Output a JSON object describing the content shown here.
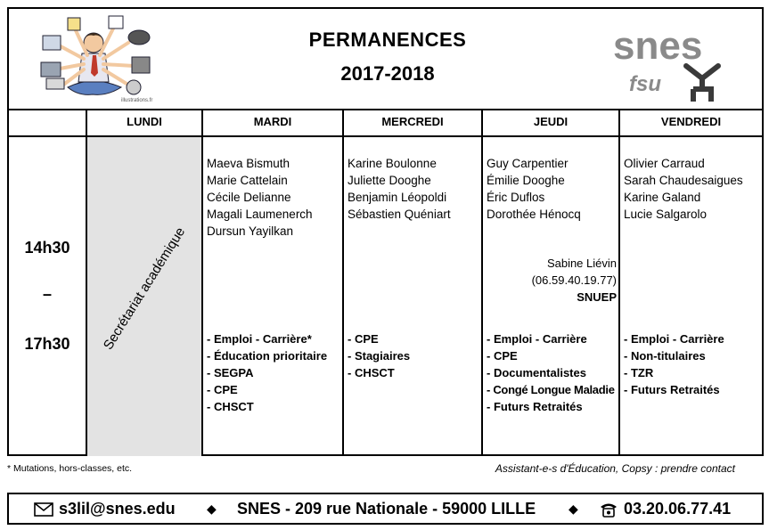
{
  "header": {
    "title": "PERMANENCES",
    "year": "2017-2018",
    "logo_main": "snes",
    "logo_sub": "fsu",
    "illustration_caption": "illustrations.fr"
  },
  "days": [
    "LUNDI",
    "MARDI",
    "MERCREDI",
    "JEUDI",
    "VENDREDI"
  ],
  "time": {
    "start": "14h30",
    "dash": "–",
    "end": "17h30"
  },
  "lundi": {
    "label": "Secrétariat académique"
  },
  "mardi": {
    "names": [
      "Maeva Bismuth",
      "Marie Cattelain",
      "Cécile Delianne",
      "Magali Laumenerch",
      "Dursun Yayilkan"
    ],
    "topics": [
      "- Emploi - Carrière*",
      "- Éducation prioritaire",
      "- SEGPA",
      "- CPE",
      "- CHSCT"
    ]
  },
  "mercredi": {
    "names": [
      "Karine Boulonne",
      "Juliette Dooghe",
      "Benjamin Léopoldi",
      "Sébastien Quéniart"
    ],
    "topics": [
      "- CPE",
      "- Stagiaires",
      "- CHSCT"
    ]
  },
  "jeudi": {
    "names": [
      "Guy Carpentier",
      "Émilie Dooghe",
      "Éric Duflos",
      "Dorothée Hénocq"
    ],
    "snuep": {
      "name": "Sabine Liévin",
      "phone": "(06.59.40.19.77)",
      "org": "SNUEP"
    },
    "topics": [
      "- Emploi - Carrière",
      "- CPE",
      "- Documentalistes",
      "- Congé Longue Maladie",
      "- Futurs Retraités"
    ]
  },
  "vendredi": {
    "names": [
      "Olivier Carraud",
      "Sarah Chaudesaigues",
      "Karine Galand",
      "Lucie Salgarolo"
    ],
    "topics": [
      "- Emploi - Carrière",
      "- Non-titulaires",
      "- TZR",
      "- Futurs Retraités"
    ]
  },
  "footnote": "* Mutations, hors-classes, etc.",
  "assistant_note": "Assistant-e-s d'Éducation, Copsy : prendre contact",
  "contact": {
    "email": "s3lil@snes.edu",
    "address": "SNES - 209 rue Nationale - 59000 LILLE",
    "phone": "03.20.06.77.41",
    "separator": "◆",
    "email_icon": "envelope-icon",
    "phone_icon": "telephone-icon"
  },
  "colors": {
    "lundi_bg": "#e3e3e3",
    "logo_gray": "#8a8a8a",
    "logo_dark": "#3a3a3a"
  }
}
